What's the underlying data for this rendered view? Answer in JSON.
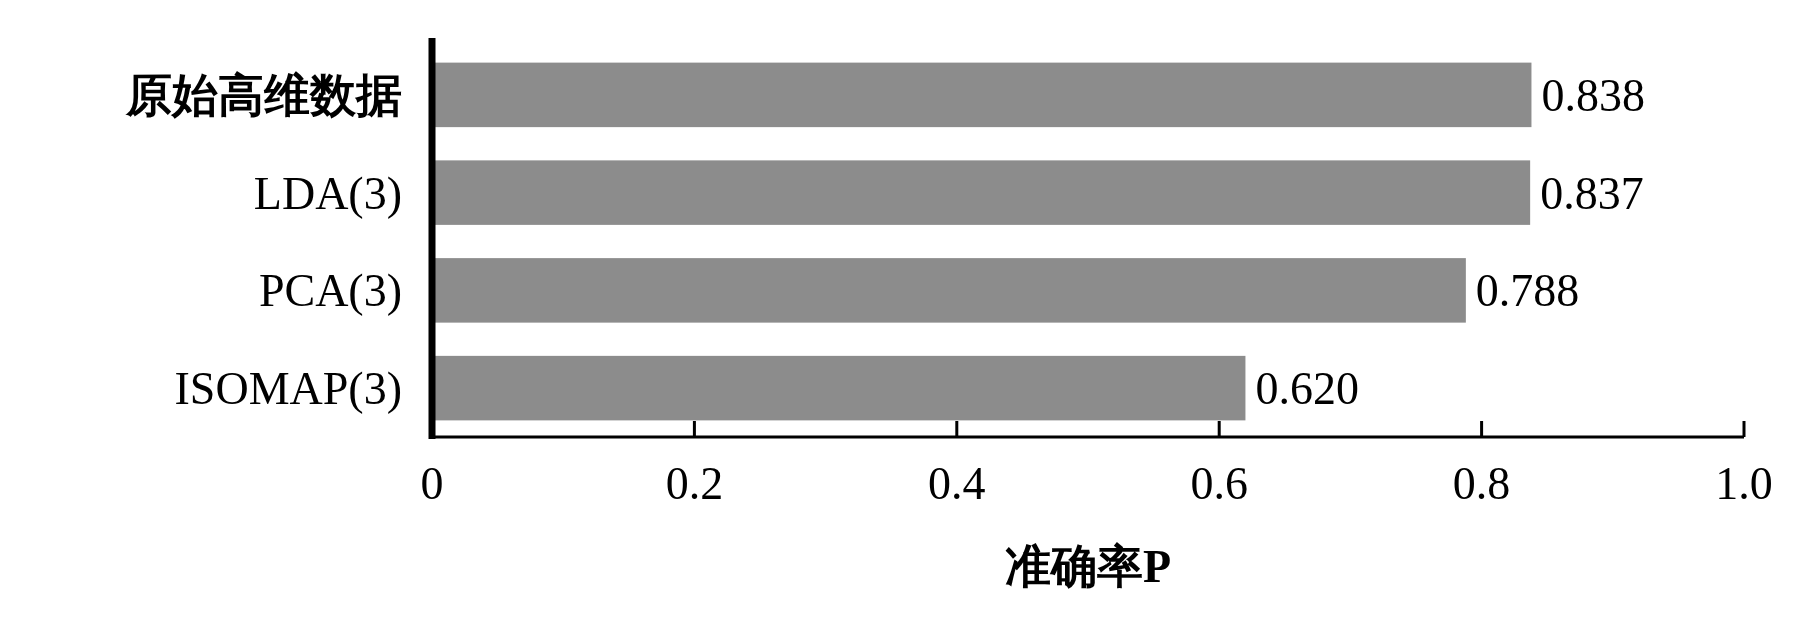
{
  "chart_data": {
    "type": "bar",
    "orientation": "horizontal",
    "xlabel": "准确率P",
    "categories": [
      "原始高维数据",
      "LDA(3)",
      "PCA(3)",
      "ISOMAP(3)"
    ],
    "values": [
      0.838,
      0.837,
      0.788,
      0.62
    ],
    "value_labels": [
      "0.838",
      "0.837",
      "0.788",
      "0.620"
    ],
    "color": "#8c8c8c",
    "xlim": [
      0,
      1
    ],
    "xticks": [
      0,
      0.2,
      0.4,
      0.6,
      0.8,
      {
        "value": 1,
        "label": "1.0"
      }
    ],
    "grid": false
  }
}
